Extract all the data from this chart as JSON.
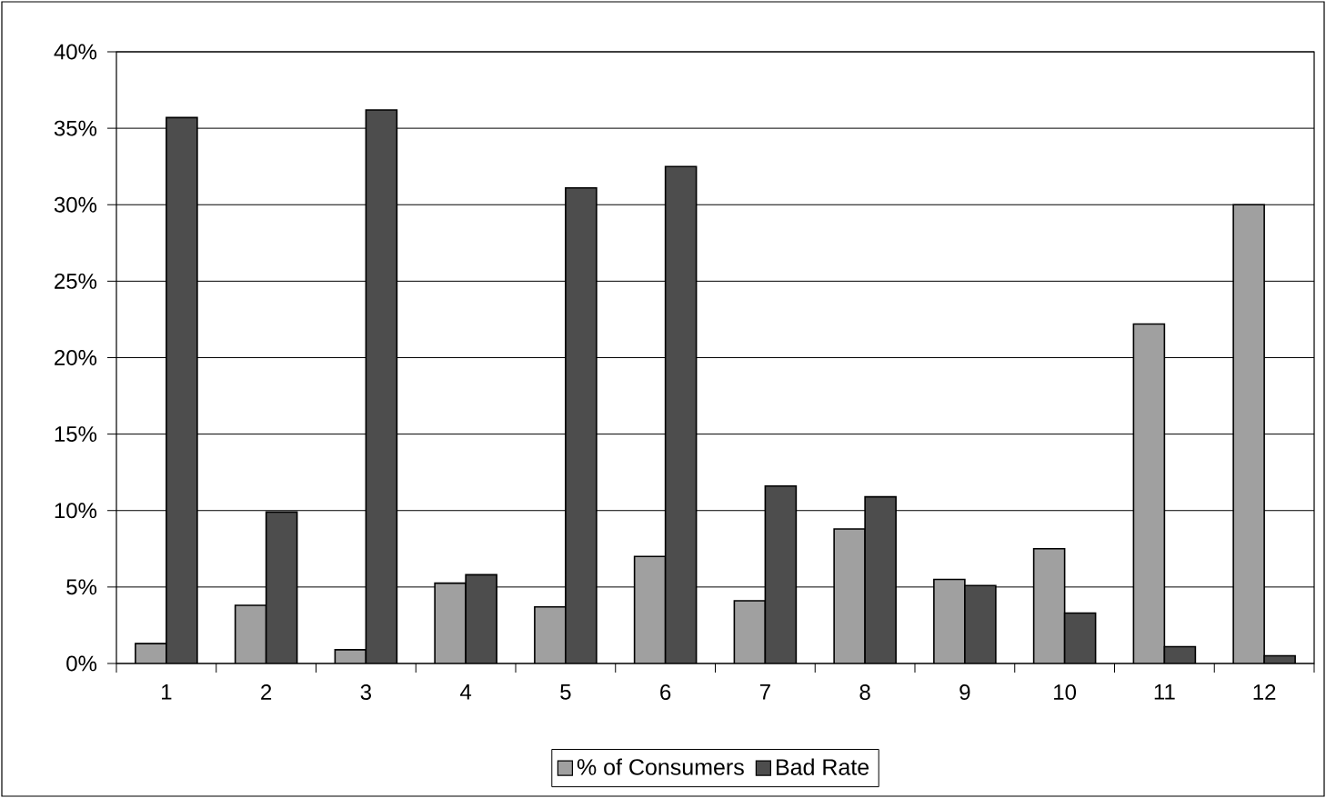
{
  "chart_data": {
    "type": "bar",
    "categories": [
      "1",
      "2",
      "3",
      "4",
      "5",
      "6",
      "7",
      "8",
      "9",
      "10",
      "11",
      "12"
    ],
    "series": [
      {
        "name": "% of Consumers",
        "color": "#a0a0a0",
        "values": [
          1.3,
          3.8,
          0.9,
          5.25,
          3.7,
          7.0,
          4.1,
          8.8,
          5.5,
          7.5,
          22.2,
          30.0
        ]
      },
      {
        "name": "Bad Rate",
        "color": "#4d4d4d",
        "values": [
          35.7,
          9.9,
          36.2,
          5.8,
          31.1,
          32.5,
          11.6,
          10.9,
          5.1,
          3.3,
          1.1,
          0.5
        ]
      }
    ],
    "ylim": [
      0,
      40
    ],
    "yticks": [
      {
        "value": 0,
        "label": "0%"
      },
      {
        "value": 5,
        "label": "5%"
      },
      {
        "value": 10,
        "label": "10%"
      },
      {
        "value": 15,
        "label": "15%"
      },
      {
        "value": 20,
        "label": "20%"
      },
      {
        "value": 25,
        "label": "25%"
      },
      {
        "value": 30,
        "label": "30%"
      },
      {
        "value": 35,
        "label": "35%"
      },
      {
        "value": 40,
        "label": "40%"
      }
    ],
    "grid": "y",
    "legend": "bottom"
  }
}
